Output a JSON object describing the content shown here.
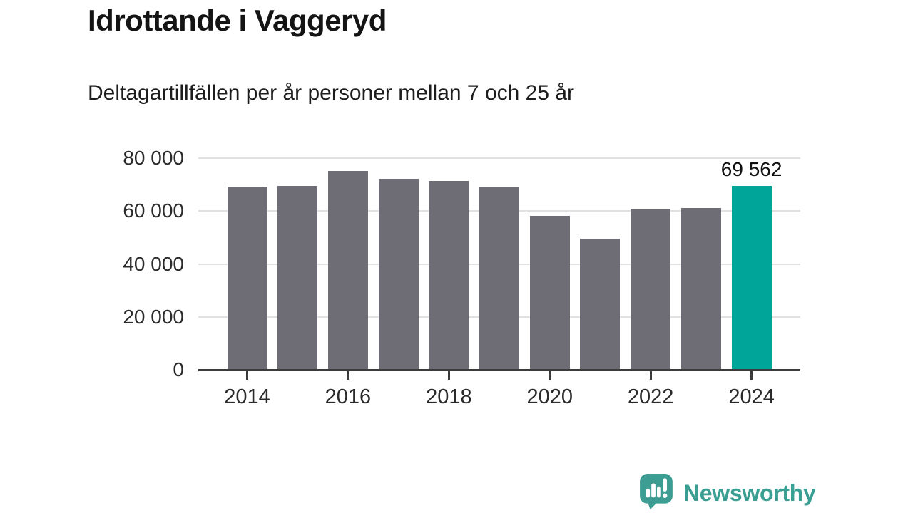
{
  "header": {
    "title": "Idrottande i Vaggeryd",
    "subtitle": "Deltagartillfällen per år personer mellan 7 och 25 år"
  },
  "chart_data": {
    "type": "bar",
    "title": "Idrottande i Vaggeryd",
    "subtitle": "Deltagartillfällen per år personer mellan 7 och 25 år",
    "categories": [
      2014,
      2015,
      2016,
      2017,
      2018,
      2019,
      2020,
      2021,
      2022,
      2023,
      2024
    ],
    "values": [
      69200,
      69550,
      75200,
      72100,
      71400,
      69300,
      58200,
      49600,
      60500,
      61200,
      69562
    ],
    "xlabel": "",
    "ylabel": "",
    "ylim": [
      0,
      80000
    ],
    "y_ticks": [
      0,
      20000,
      40000,
      60000,
      80000
    ],
    "y_tick_labels": [
      "0",
      "20 000",
      "40 000",
      "60 000",
      "80 000"
    ],
    "x_tick_labels": [
      "2014",
      "2016",
      "2018",
      "2020",
      "2022",
      "2024"
    ],
    "grid": "horizontal",
    "legend": "none",
    "bar_color": "#6e6c74",
    "highlight_index": 10,
    "highlight_color": "#00a59a",
    "annotation": {
      "text": "69 562",
      "bar_index": 10,
      "value": 69562
    }
  },
  "footer": {
    "brand": "Newsworthy",
    "brand_color": "#3a9e93",
    "logo_icon": "newsworthy-speech-bubble-bar-chart-icon"
  }
}
